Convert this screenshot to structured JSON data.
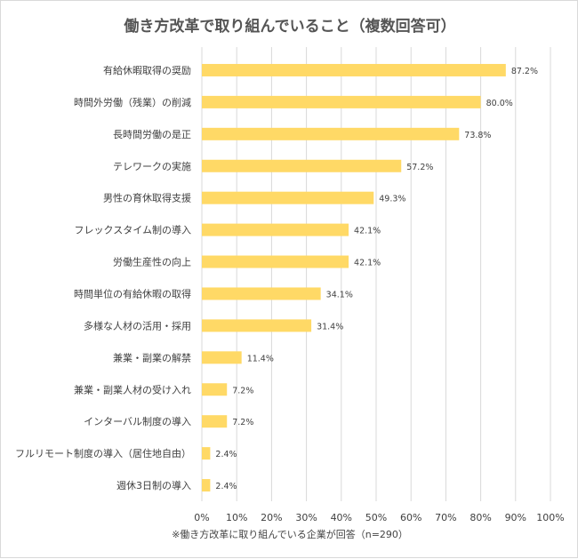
{
  "chart_data": {
    "type": "bar",
    "orientation": "horizontal",
    "title": "働き方改革で取り組んでいること（複数回答可）",
    "categories": [
      "有給休暇取得の奨励",
      "時間外労働（残業）の削減",
      "長時間労働の是正",
      "テレワークの実施",
      "男性の育休取得支援",
      "フレックスタイム制の導入",
      "労働生産性の向上",
      "時間単位の有給休暇の取得",
      "多様な人材の活用・採用",
      "兼業・副業の解禁",
      "兼業・副業人材の受け入れ",
      "インターバル制度の導入",
      "フルリモート制度の導入（居住地自由）",
      "週休3日制の導入"
    ],
    "values": [
      87.2,
      80.0,
      73.8,
      57.2,
      49.3,
      42.1,
      42.1,
      34.1,
      31.4,
      11.4,
      7.2,
      7.2,
      2.4,
      2.4
    ],
    "value_labels": [
      "87.2%",
      "80.0%",
      "73.8%",
      "57.2%",
      "49.3%",
      "42.1%",
      "42.1%",
      "34.1%",
      "31.4%",
      "11.4%",
      "7.2%",
      "7.2%",
      "2.4%",
      "2.4%"
    ],
    "xlim": [
      0,
      100
    ],
    "x_ticks": [
      "0%",
      "10%",
      "20%",
      "30%",
      "40%",
      "50%",
      "60%",
      "70%",
      "80%",
      "90%",
      "100%"
    ],
    "grid": "vertical",
    "bar_color": "#ffd966",
    "grid_color": "#d9d9d9",
    "text_color": "#404040",
    "footnote": "※働き方改革に取り組んでいる企業が回答（n=290）"
  }
}
